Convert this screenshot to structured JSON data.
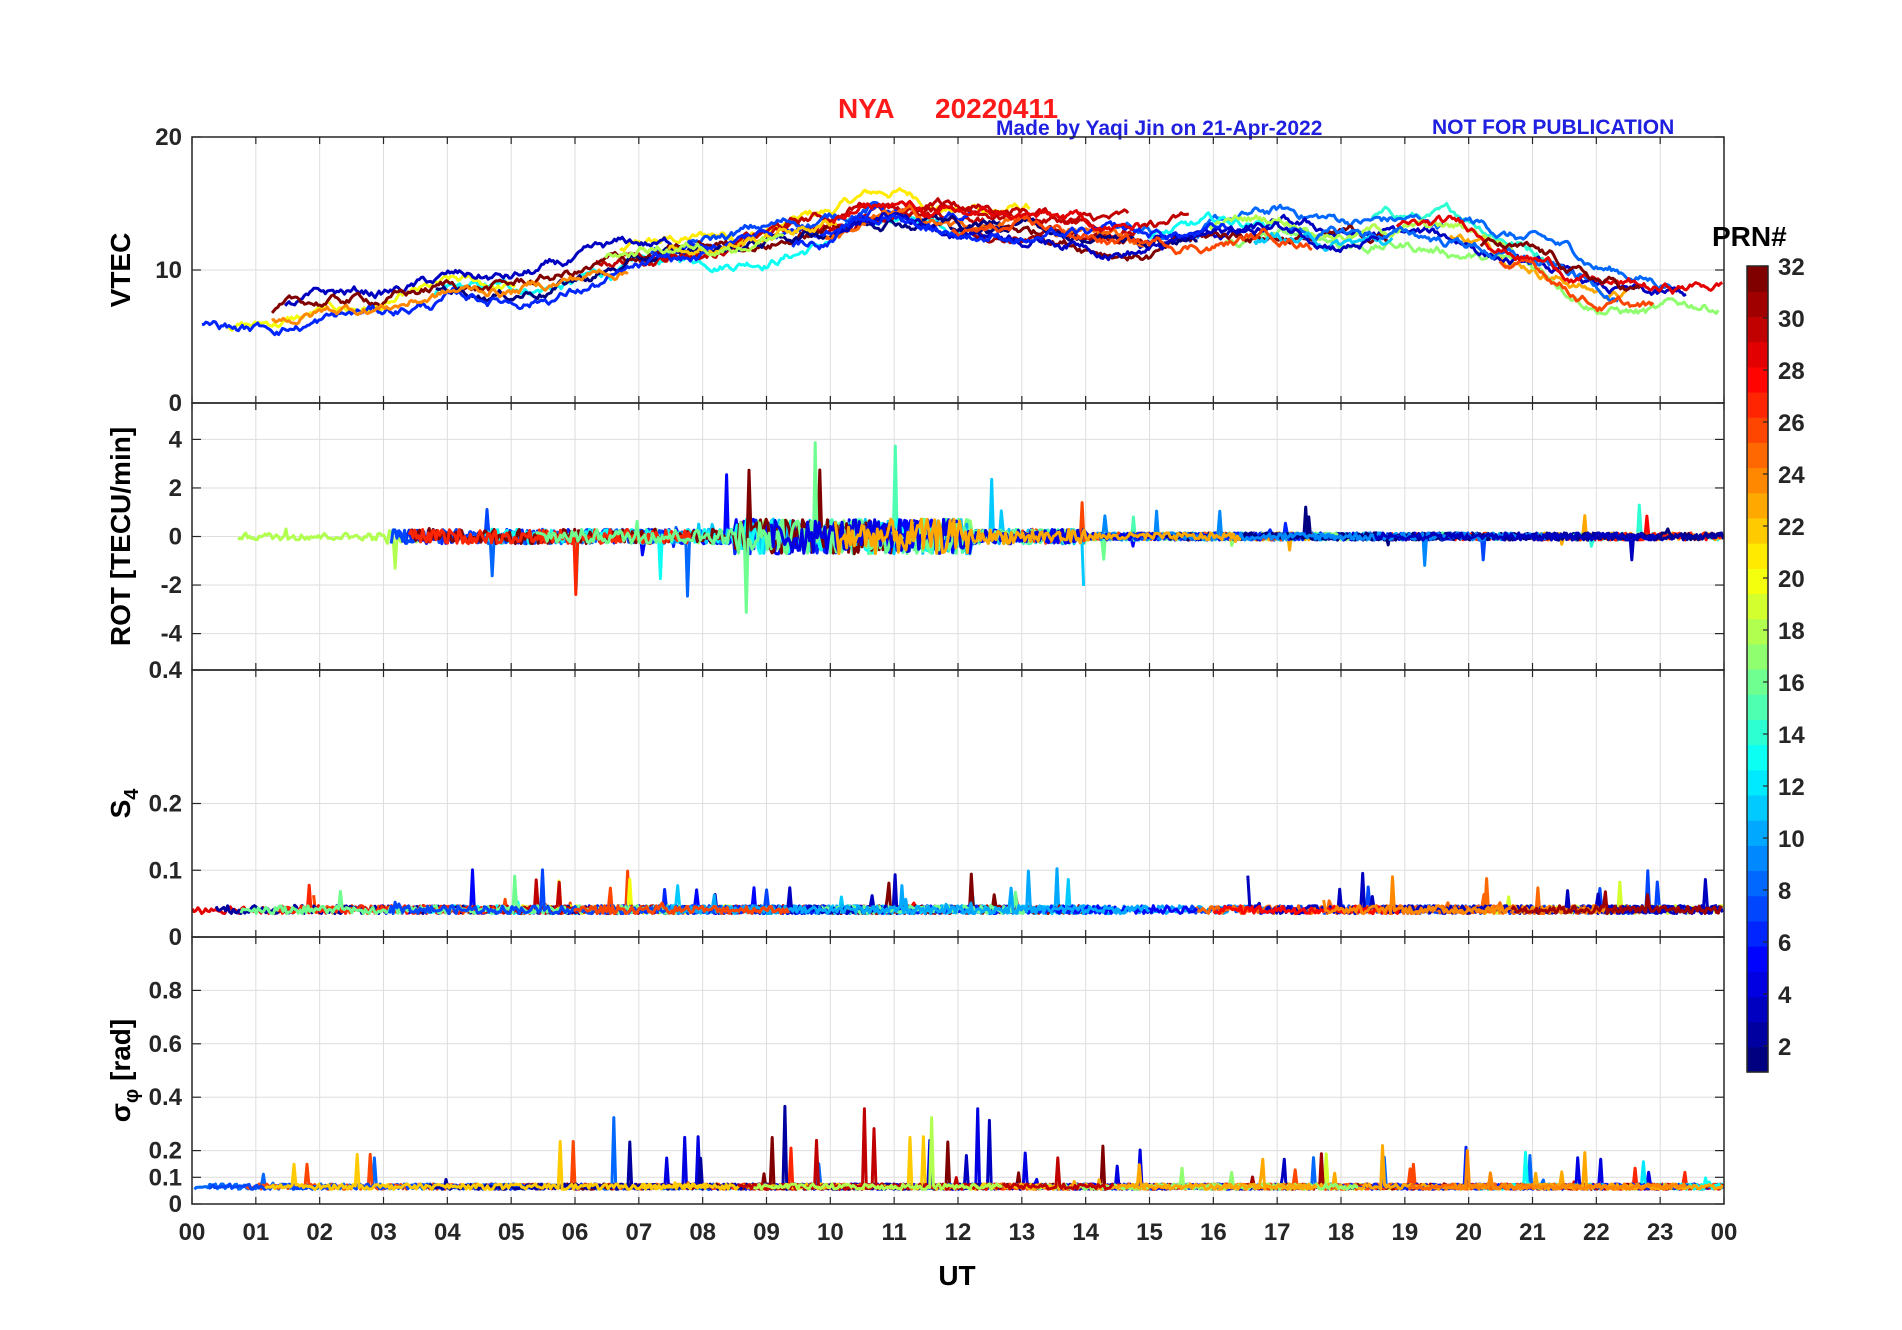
{
  "title": {
    "station": "NYA",
    "date": "20220411"
  },
  "credit": {
    "made_by": "Made by Yaqi Jin on 21-Apr-2022",
    "notice": "NOT FOR PUBLICATION"
  },
  "x_axis": {
    "label": "UT",
    "range": [
      0,
      24
    ],
    "tick_labels": [
      "00",
      "01",
      "02",
      "03",
      "04",
      "05",
      "06",
      "07",
      "08",
      "09",
      "10",
      "11",
      "12",
      "13",
      "14",
      "15",
      "16",
      "17",
      "18",
      "19",
      "20",
      "21",
      "22",
      "23",
      "00"
    ]
  },
  "colorbar": {
    "label": "PRN#",
    "range": [
      1,
      32
    ],
    "tick_labels": [
      "2",
      "4",
      "6",
      "8",
      "10",
      "12",
      "14",
      "16",
      "18",
      "20",
      "22",
      "24",
      "26",
      "28",
      "30",
      "32"
    ],
    "tick_values": [
      2,
      4,
      6,
      8,
      10,
      12,
      14,
      16,
      18,
      20,
      22,
      24,
      26,
      28,
      30,
      32
    ]
  },
  "chart_data": [
    {
      "type": "line",
      "id": "vtec",
      "ylabel": "VTEC",
      "ylim": [
        0,
        20
      ],
      "ytick_values": [
        0,
        10,
        20
      ],
      "ytick_labels": [
        "0",
        "10",
        "20"
      ],
      "grid": true,
      "baseline": [
        [
          0,
          6.5
        ],
        [
          1,
          6.2
        ],
        [
          2,
          7
        ],
        [
          3,
          7.5
        ],
        [
          4,
          8.5
        ],
        [
          5,
          8.5
        ],
        [
          6,
          9.5
        ],
        [
          7,
          10.5
        ],
        [
          8,
          11
        ],
        [
          9,
          12
        ],
        [
          10,
          13
        ],
        [
          10.5,
          14
        ],
        [
          11,
          14.5
        ],
        [
          12,
          13.5
        ],
        [
          13,
          13.5
        ],
        [
          14,
          13
        ],
        [
          15,
          12.5
        ],
        [
          16,
          13
        ],
        [
          17,
          13.5
        ],
        [
          18,
          13
        ],
        [
          19,
          13
        ],
        [
          20,
          12.5
        ],
        [
          21,
          11
        ],
        [
          22,
          9
        ],
        [
          23,
          8
        ],
        [
          24,
          8.5
        ]
      ]
    },
    {
      "type": "line",
      "id": "rot",
      "ylabel": "ROT [TECU/min]",
      "ylim": [
        -5.5,
        5.5
      ],
      "ytick_values": [
        -4,
        -2,
        0,
        2,
        4
      ],
      "ytick_labels": [
        "-4",
        "-2",
        "0",
        "2",
        "4"
      ],
      "grid": true,
      "baseline": [
        [
          0,
          0
        ],
        [
          24,
          0
        ]
      ]
    },
    {
      "type": "line",
      "id": "s4",
      "ylabel": "S",
      "ylabel_sub": "4",
      "ylim": [
        0,
        0.4
      ],
      "ytick_values": [
        0,
        0.1,
        0.2,
        0.4
      ],
      "ytick_labels": [
        "0",
        "0.1",
        "0.2",
        "0.4"
      ],
      "grid": true,
      "baseline": [
        [
          0,
          0.04
        ],
        [
          24,
          0.04
        ]
      ]
    },
    {
      "type": "line",
      "id": "sigma_phi",
      "ylabel": "σ",
      "ylabel_sub": "φ",
      "ylabel_unit": " [rad]",
      "ylim": [
        0,
        1.0
      ],
      "ytick_values": [
        0,
        0.1,
        0.2,
        0.4,
        0.6,
        0.8
      ],
      "ytick_labels": [
        "0",
        "0.1",
        "0.2",
        "0.4",
        "0.6",
        "0.8"
      ],
      "grid": true,
      "baseline": [
        [
          0,
          0.06
        ],
        [
          24,
          0.06
        ]
      ]
    }
  ]
}
